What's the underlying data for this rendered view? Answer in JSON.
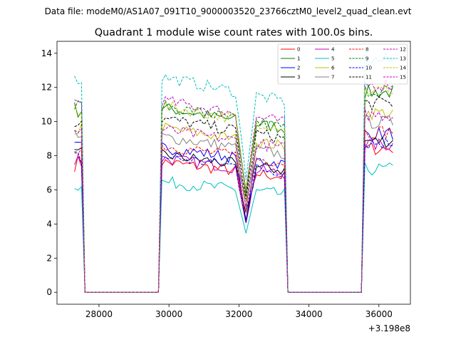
{
  "header": {
    "suptitle": "Data file: modeM0/AS1A07_091T10_9000003520_23766cztM0_level2_quad_clean.evt",
    "title": "Quadrant 1 module wise count rates with 100.0s bins."
  },
  "chart_data": {
    "type": "line",
    "title": "Quadrant 1 module wise count rates with 100.0s bins.",
    "xlabel": "",
    "ylabel": "",
    "x_offset_label": "+3.198e8",
    "xlim": [
      26800,
      36900
    ],
    "ylim": [
      -0.7,
      14.7
    ],
    "x_ticks": [
      28000,
      30000,
      32000,
      34000,
      36000
    ],
    "x_tick_labels": [
      "28000",
      "30000",
      "32000",
      "34000",
      "36000"
    ],
    "y_ticks": [
      0,
      2,
      4,
      6,
      8,
      10,
      12,
      14
    ],
    "y_tick_labels": [
      "0",
      "2",
      "4",
      "6",
      "8",
      "10",
      "12",
      "14"
    ],
    "grid": false,
    "legend_placement": "top-right",
    "segments": [
      {
        "x_start": 27300,
        "x_end": 27600
      },
      {
        "x_start": 27600,
        "x_end": 29700,
        "zero": true
      },
      {
        "x_start": 29800,
        "x_end": 33300
      },
      {
        "x_start": 33400,
        "x_end": 35500,
        "zero": true
      },
      {
        "x_start": 35600,
        "x_end": 36400
      }
    ],
    "dip": {
      "x": 32200,
      "depth": 0.6
    },
    "series": [
      {
        "name": "0",
        "color": "#ff0000",
        "dash": false,
        "level": 7.2
      },
      {
        "name": "1",
        "color": "#008000",
        "dash": false,
        "level": 10.2
      },
      {
        "name": "2",
        "color": "#0000ff",
        "dash": false,
        "level": 8.0
      },
      {
        "name": "3",
        "color": "#000000",
        "dash": false,
        "level": 7.6
      },
      {
        "name": "4",
        "color": "#bf00bf",
        "dash": false,
        "level": 7.4
      },
      {
        "name": "5",
        "color": "#00bfbf",
        "dash": false,
        "level": 6.1
      },
      {
        "name": "6",
        "color": "#bfbf00",
        "dash": false,
        "level": 9.1
      },
      {
        "name": "7",
        "color": "#808080",
        "dash": false,
        "level": 8.6
      },
      {
        "name": "8",
        "color": "#ff0000",
        "dash": true,
        "level": 8.1
      },
      {
        "name": "9",
        "color": "#008000",
        "dash": true,
        "level": 10.3
      },
      {
        "name": "10",
        "color": "#0000ff",
        "dash": true,
        "level": 7.5
      },
      {
        "name": "11",
        "color": "#000000",
        "dash": true,
        "level": 9.6
      },
      {
        "name": "12",
        "color": "#bf00bf",
        "dash": true,
        "level": 10.6
      },
      {
        "name": "13",
        "color": "#00bfbf",
        "dash": true,
        "level": 11.9
      },
      {
        "name": "14",
        "color": "#bfbf00",
        "dash": true,
        "level": 10.3
      },
      {
        "name": "15",
        "color": "#bf00bf",
        "dash": true,
        "level": 9.0
      }
    ]
  }
}
